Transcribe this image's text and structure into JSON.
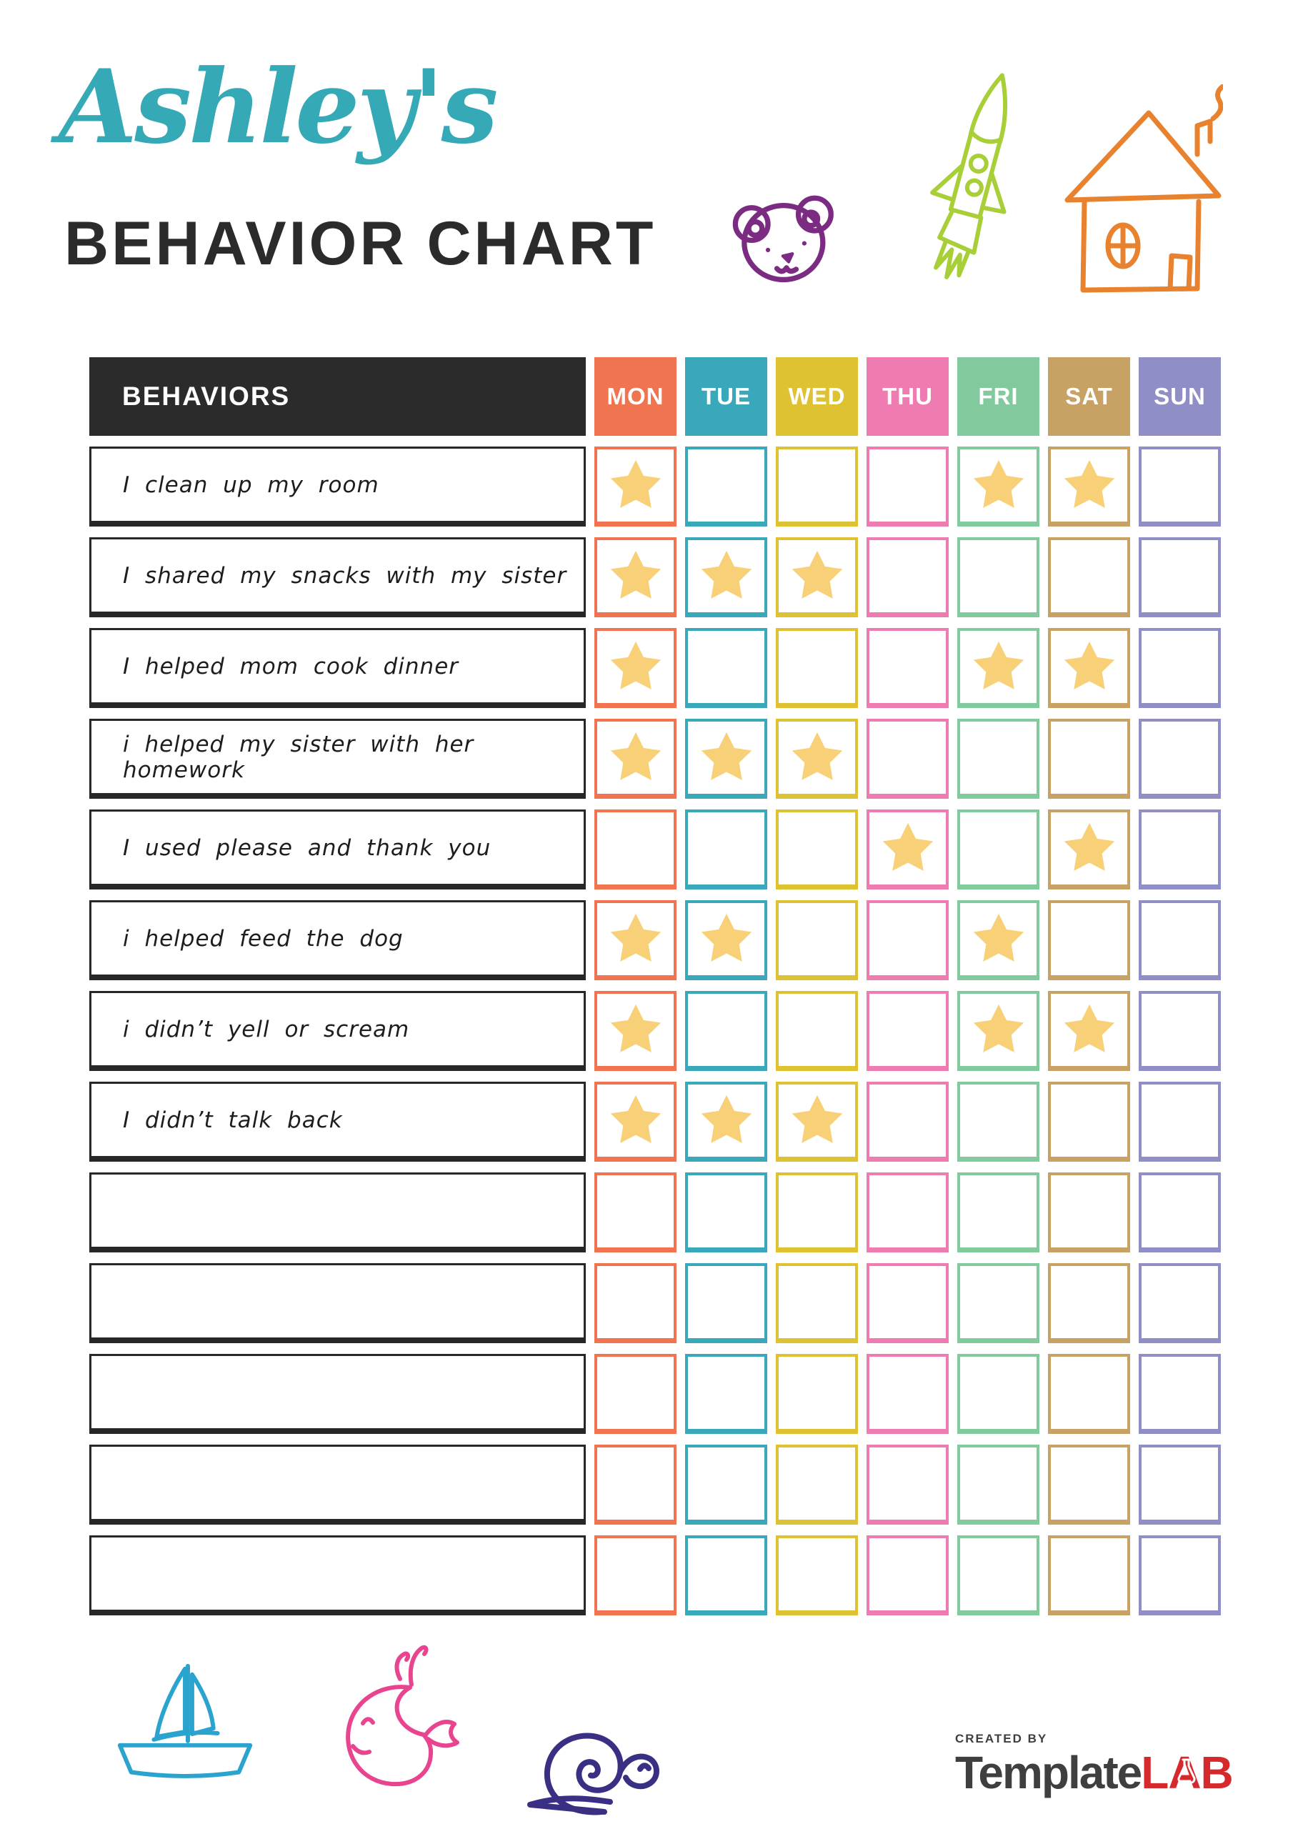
{
  "header": {
    "name": "Ashley's",
    "title": "BEHAVIOR CHART"
  },
  "icons": {
    "top": [
      "bear-icon",
      "rocket-icon",
      "house-icon"
    ],
    "bottom": [
      "sailboat-icon",
      "whale-icon",
      "snail-icon"
    ],
    "logo": "flask-icon"
  },
  "colors": {
    "accent_teal": "#36A9B7",
    "heading_text": "#2B2B2B",
    "table_header_bg": "#2B2B2B",
    "star": "#F7D077",
    "bear": "#7C2B82",
    "rocket": "#A8CE38",
    "house": "#E8822E",
    "sailboat": "#2BA3CF",
    "whale": "#E8448F",
    "snail": "#392F83",
    "logo_red": "#D5292D",
    "logo_gray": "#3F3F3F"
  },
  "table": {
    "behaviors_header": "BEHAVIORS",
    "days": [
      {
        "label": "MON",
        "color": "#F0744F"
      },
      {
        "label": "TUE",
        "color": "#38A8BA"
      },
      {
        "label": "WED",
        "color": "#DFC232"
      },
      {
        "label": "THU",
        "color": "#EF7CB1"
      },
      {
        "label": "FRI",
        "color": "#82CA9D"
      },
      {
        "label": "SAT",
        "color": "#C8A164"
      },
      {
        "label": "SUN",
        "color": "#8F8EC6"
      }
    ],
    "rows": [
      {
        "behavior": "I clean up my room",
        "stars": [
          "MON",
          "FRI",
          "SAT"
        ]
      },
      {
        "behavior": "I shared my snacks with my sister",
        "stars": [
          "MON",
          "TUE",
          "WED"
        ]
      },
      {
        "behavior": "I helped mom cook dinner",
        "stars": [
          "MON",
          "FRI",
          "SAT"
        ]
      },
      {
        "behavior": "i helped my sister with her homework",
        "stars": [
          "MON",
          "TUE",
          "WED"
        ]
      },
      {
        "behavior": "I used please and thank you",
        "stars": [
          "THU",
          "SAT"
        ]
      },
      {
        "behavior": "i helped feed the dog",
        "stars": [
          "MON",
          "TUE",
          "FRI"
        ]
      },
      {
        "behavior": "i didn’t yell or scream",
        "stars": [
          "MON",
          "FRI",
          "SAT"
        ]
      },
      {
        "behavior": "I didn’t talk back",
        "stars": [
          "MON",
          "TUE",
          "WED"
        ]
      },
      {
        "behavior": "",
        "stars": []
      },
      {
        "behavior": "",
        "stars": []
      },
      {
        "behavior": "",
        "stars": []
      },
      {
        "behavior": "",
        "stars": []
      },
      {
        "behavior": "",
        "stars": []
      }
    ]
  },
  "footer": {
    "logo": {
      "created_by": "CREATED BY",
      "brand_primary": "Template",
      "brand_secondary": "LAB"
    }
  }
}
